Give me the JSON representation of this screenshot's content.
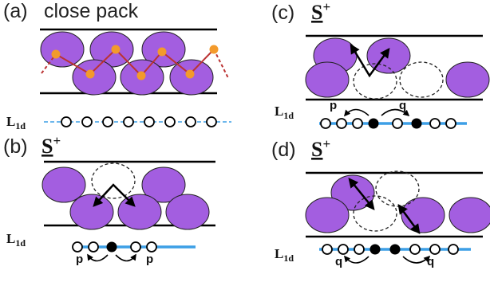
{
  "panels": [
    {
      "label": "(a)",
      "title": "close pack",
      "chain_label": {
        "base": "L",
        "sub": "1d"
      }
    },
    {
      "label": "(b)",
      "title": {
        "base": "S",
        "sup": "+"
      },
      "chain_label": {
        "base": "L",
        "sub": "1d"
      },
      "hop_labels": [
        "p",
        "p"
      ]
    },
    {
      "label": "(c)",
      "title": {
        "base": "S",
        "sup": "+"
      },
      "chain_label": {
        "base": "L",
        "sub": "1d"
      },
      "hop_labels": [
        "p",
        "q"
      ]
    },
    {
      "label": "(d)",
      "title": {
        "base": "S",
        "sup": "+"
      },
      "chain_label": {
        "base": "L",
        "sub": "1d"
      },
      "hop_labels": [
        "q",
        "q"
      ]
    }
  ]
}
